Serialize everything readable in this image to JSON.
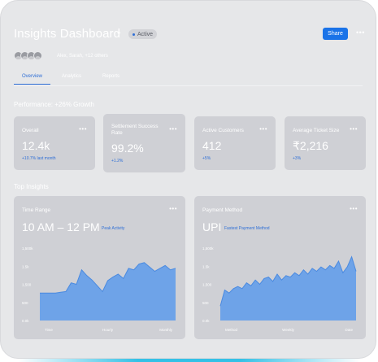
{
  "header": {
    "title": "Insights Dashboard",
    "status": "Active",
    "share_label": "Share",
    "members_text": "Alex, Sarah, +12 others"
  },
  "tabs": [
    {
      "label": "Overview",
      "active": true
    },
    {
      "label": "Analytics",
      "active": false
    },
    {
      "label": "Reports",
      "active": false
    }
  ],
  "performance": {
    "title": "Performance: +26% Growth"
  },
  "kpis": [
    {
      "title": "Overall",
      "value": "12.4k",
      "delta": "+10.7% last month"
    },
    {
      "title": "Settlement Success Rate",
      "value": "99.2%",
      "delta": "+1.2%"
    },
    {
      "title": "Active Customers",
      "value": "412",
      "delta": "+5%"
    },
    {
      "title": "Average Ticket Size",
      "value": "₹2,216",
      "delta": "+3%"
    }
  ],
  "insights": {
    "title": "Top Insights",
    "cards": [
      {
        "title": "Time Range",
        "value": "10 AM – 12 PM",
        "tag": "Peak Activity"
      },
      {
        "title": "Payment Method",
        "value": "UPI",
        "tag": "Fastest Payment Method"
      }
    ]
  },
  "colors": {
    "accent": "#1a73e8",
    "fill": "#6ea3e8",
    "line": "#4a8ae0"
  },
  "chart_data": [
    {
      "type": "area",
      "y_ticks": [
        "1,500k",
        "1.5k",
        "1,500",
        "500",
        "0.0k"
      ],
      "x_ticks": [
        "Time",
        "Hourly",
        "Monthly"
      ],
      "values": [
        38,
        38,
        38,
        38,
        39,
        40,
        52,
        50,
        70,
        62,
        56,
        48,
        40,
        55,
        60,
        64,
        58,
        72,
        70,
        78,
        80,
        74,
        68,
        72,
        76,
        70,
        72
      ]
    },
    {
      "type": "area",
      "y_ticks": [
        "1,500k",
        "1.5k",
        "1,500",
        "500",
        "0.0k"
      ],
      "x_ticks": [
        "Method",
        "Weekly",
        "Date"
      ],
      "values": [
        20,
        42,
        38,
        44,
        47,
        44,
        52,
        48,
        56,
        50,
        58,
        60,
        54,
        64,
        56,
        62,
        60,
        66,
        62,
        70,
        64,
        72,
        68,
        74,
        70,
        76,
        72,
        82,
        66,
        74,
        88,
        68
      ]
    }
  ]
}
